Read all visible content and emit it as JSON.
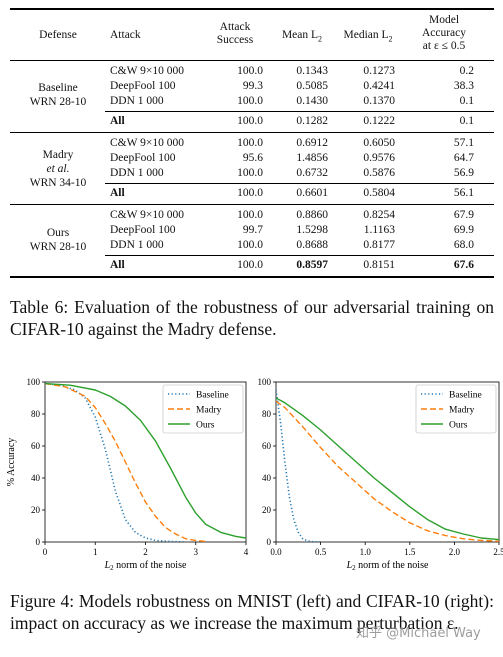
{
  "table": {
    "headers": {
      "defense": "Defense",
      "attack": "Attack",
      "success_line1": "Attack",
      "success_line2": "Success",
      "mean": "Mean L",
      "mean_sub": "2",
      "median": "Median L",
      "median_sub": "2",
      "acc_line1": "Model",
      "acc_line2": "Accuracy",
      "acc_line3": "at ε ≤ 0.5"
    },
    "groups": [
      {
        "defense_lines": [
          "Baseline",
          "WRN 28-10"
        ],
        "rows": [
          {
            "attack": "C&W 9×10 000",
            "success": "100.0",
            "mean": "0.1343",
            "median": "0.1273",
            "acc": "0.2"
          },
          {
            "attack": "DeepFool 100",
            "success": "99.3",
            "mean": "0.5085",
            "median": "0.4241",
            "acc": "38.3"
          },
          {
            "attack": "DDN 1 000",
            "success": "100.0",
            "mean": "0.1430",
            "median": "0.1370",
            "acc": "0.1"
          }
        ],
        "all": {
          "attack": "All",
          "success": "100.0",
          "mean": "0.1282",
          "median": "0.1222",
          "acc": "0.1"
        }
      },
      {
        "defense_lines": [
          "Madry",
          "et al.",
          "WRN 34-10"
        ],
        "rows": [
          {
            "attack": "C&W 9×10 000",
            "success": "100.0",
            "mean": "0.6912",
            "median": "0.6050",
            "acc": "57.1"
          },
          {
            "attack": "DeepFool 100",
            "success": "95.6",
            "mean": "1.4856",
            "median": "0.9576",
            "acc": "64.7"
          },
          {
            "attack": "DDN 1 000",
            "success": "100.0",
            "mean": "0.6732",
            "median": "0.5876",
            "acc": "56.9"
          }
        ],
        "all": {
          "attack": "All",
          "success": "100.0",
          "mean": "0.6601",
          "median": "0.5804",
          "acc": "56.1"
        }
      },
      {
        "defense_lines": [
          "Ours",
          "WRN 28-10"
        ],
        "rows": [
          {
            "attack": "C&W 9×10 000",
            "success": "100.0",
            "mean": "0.8860",
            "median": "0.8254",
            "acc": "67.9"
          },
          {
            "attack": "DeepFool 100",
            "success": "99.7",
            "mean": "1.5298",
            "median": "1.1163",
            "acc": "69.9"
          },
          {
            "attack": "DDN 1 000",
            "success": "100.0",
            "mean": "0.8688",
            "median": "0.8177",
            "acc": "68.0"
          }
        ],
        "all": {
          "attack": "All",
          "success": "100.0",
          "mean": "0.8597",
          "median": "0.8151",
          "acc": "67.6"
        }
      }
    ]
  },
  "table_caption": "Table 6: Evaluation of the robustness of our adversarial training on CIFAR-10 against the Madry defense.",
  "figure_caption": "Figure 4: Models robustness on MNIST (left) and CIFAR-10 (right): impact on accuracy as we increase the maximum perturbation ε.",
  "watermark": "知乎 @Michael Way",
  "chart_data": [
    {
      "type": "line",
      "title": "",
      "xlabel": "L2 norm of the noise",
      "ylabel": "% Accuracy",
      "xlim": [
        0,
        4
      ],
      "ylim": [
        0,
        100
      ],
      "xticks": [
        "0",
        "1",
        "2",
        "3",
        "4"
      ],
      "yticks": [
        "0",
        "20",
        "40",
        "60",
        "80",
        "100"
      ],
      "legend": "top-right",
      "grid": false,
      "series": [
        {
          "name": "Baseline",
          "color": "#1f77b4",
          "style": "dotted",
          "x": [
            0,
            0.3,
            0.6,
            0.8,
            1.0,
            1.2,
            1.4,
            1.6,
            1.8,
            2.0,
            2.2,
            2.5,
            2.8
          ],
          "y": [
            99,
            98,
            95,
            90,
            78,
            58,
            32,
            14,
            6,
            2.5,
            1,
            0.3,
            0
          ]
        },
        {
          "name": "Madry",
          "color": "#ff7f0e",
          "style": "dashed",
          "x": [
            0,
            0.4,
            0.8,
            1.0,
            1.2,
            1.4,
            1.6,
            1.8,
            2.0,
            2.2,
            2.4,
            2.6,
            2.8,
            3.0,
            3.2
          ],
          "y": [
            99,
            97,
            91,
            84,
            74,
            63,
            50,
            37,
            25,
            16,
            9,
            5,
            2,
            1,
            0.3
          ]
        },
        {
          "name": "Ours",
          "color": "#2ca02c",
          "style": "solid",
          "x": [
            0,
            0.5,
            1.0,
            1.3,
            1.6,
            1.9,
            2.2,
            2.5,
            2.8,
            3.0,
            3.2,
            3.5,
            3.8,
            4.0
          ],
          "y": [
            99,
            98,
            95,
            91,
            85,
            76,
            63,
            46,
            28,
            18,
            11,
            6,
            3.5,
            2.5
          ]
        }
      ]
    },
    {
      "type": "line",
      "title": "",
      "xlabel": "L2 norm of the noise",
      "ylabel": "",
      "xlim": [
        0,
        2.5
      ],
      "ylim": [
        0,
        100
      ],
      "xticks": [
        "0.0",
        "0.5",
        "1.0",
        "1.5",
        "2.0",
        "2.5"
      ],
      "yticks": [
        "0",
        "20",
        "40",
        "60",
        "80",
        "100"
      ],
      "legend": "top-right",
      "grid": false,
      "series": [
        {
          "name": "Baseline",
          "color": "#1f77b4",
          "style": "dotted",
          "x": [
            0,
            0.05,
            0.1,
            0.15,
            0.2,
            0.25,
            0.3,
            0.35,
            0.4,
            0.5
          ],
          "y": [
            95,
            75,
            50,
            28,
            14,
            6,
            2,
            0.8,
            0.2,
            0
          ]
        },
        {
          "name": "Madry",
          "color": "#ff7f0e",
          "style": "dashed",
          "x": [
            0,
            0.1,
            0.3,
            0.5,
            0.7,
            0.9,
            1.1,
            1.3,
            1.5,
            1.7,
            1.9,
            2.1,
            2.3,
            2.5
          ],
          "y": [
            88,
            84,
            72,
            59,
            47,
            37,
            27,
            19,
            12,
            7,
            4,
            2,
            1,
            0.5
          ]
        },
        {
          "name": "Ours",
          "color": "#2ca02c",
          "style": "solid",
          "x": [
            0,
            0.1,
            0.3,
            0.5,
            0.7,
            0.9,
            1.1,
            1.3,
            1.5,
            1.7,
            1.9,
            2.1,
            2.3,
            2.5
          ],
          "y": [
            90,
            87,
            79,
            70,
            60,
            50,
            40,
            31,
            22,
            14,
            8,
            5,
            2.5,
            1.5
          ]
        }
      ]
    }
  ]
}
